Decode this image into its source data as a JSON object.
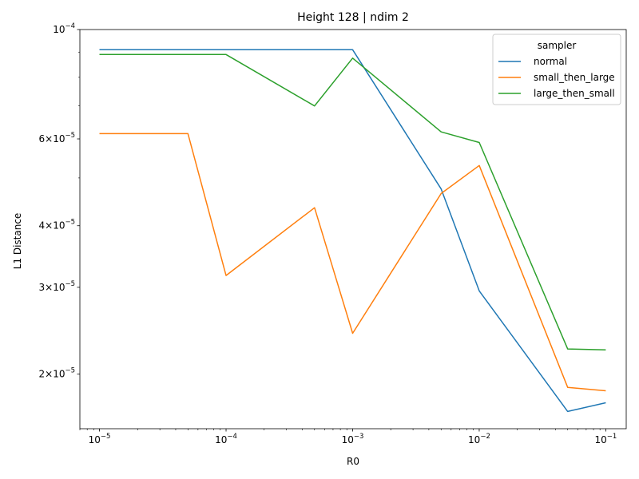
{
  "chart_data": {
    "type": "line",
    "title": "Height 128 | ndim 2",
    "xlabel": "R0",
    "ylabel": "L1 Distance",
    "x_scale": "log",
    "y_scale": "log",
    "xlim": [
      7e-06,
      0.145
    ],
    "ylim": [
      1.55e-05,
      0.0001
    ],
    "grid": false,
    "legend": {
      "title": "sampler",
      "placement": "top-right"
    },
    "x_ticks": [
      {
        "value": 1e-05,
        "base": "10",
        "exp": "−5"
      },
      {
        "value": 0.0001,
        "base": "10",
        "exp": "−4"
      },
      {
        "value": 0.001,
        "base": "10",
        "exp": "−3"
      },
      {
        "value": 0.01,
        "base": "10",
        "exp": "−2"
      },
      {
        "value": 0.1,
        "base": "10",
        "exp": "−1"
      }
    ],
    "y_ticks": [
      {
        "value": 2e-05,
        "mant": "2",
        "base": "10",
        "exp": "−5"
      },
      {
        "value": 3e-05,
        "mant": "3",
        "base": "10",
        "exp": "−5"
      },
      {
        "value": 4e-05,
        "mant": "4",
        "base": "10",
        "exp": "−5"
      },
      {
        "value": 6e-05,
        "mant": "6",
        "base": "10",
        "exp": "−5"
      },
      {
        "value": 0.0001,
        "mant": "",
        "base": "10",
        "exp": "−4"
      }
    ],
    "y_minor_ticks": [
      5e-05,
      7e-05,
      8e-05,
      9e-05
    ],
    "x": [
      1e-05,
      5e-05,
      0.0001,
      0.0005,
      0.001,
      0.005,
      0.01,
      0.05,
      0.1
    ],
    "series": [
      {
        "name": "normal",
        "color": "#1f77b4",
        "values": [
          9.1e-05,
          9.1e-05,
          9.1e-05,
          9.1e-05,
          9.1e-05,
          4.75e-05,
          2.95e-05,
          1.68e-05,
          1.75e-05
        ]
      },
      {
        "name": "small_then_large",
        "color": "#ff7f0e",
        "values": [
          6.15e-05,
          6.15e-05,
          3.17e-05,
          4.35e-05,
          2.42e-05,
          4.65e-05,
          5.3e-05,
          1.88e-05,
          1.85e-05
        ]
      },
      {
        "name": "large_then_small",
        "color": "#2ca02c",
        "values": [
          8.9e-05,
          8.9e-05,
          8.9e-05,
          7e-05,
          8.75e-05,
          6.2e-05,
          5.9e-05,
          2.25e-05,
          2.24e-05
        ]
      }
    ]
  }
}
